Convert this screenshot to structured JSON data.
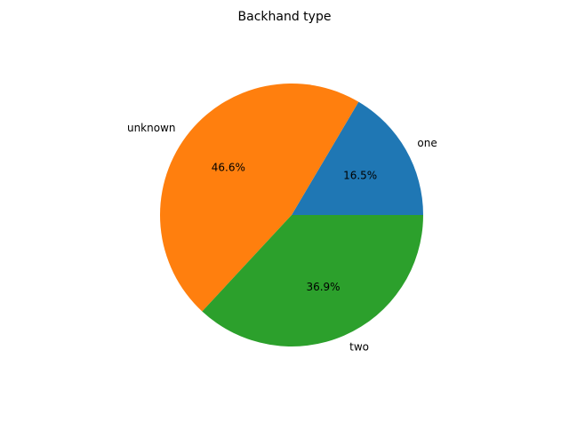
{
  "chart_data": {
    "type": "pie",
    "title": "Backhand type",
    "categories": [
      "one",
      "unknown",
      "two"
    ],
    "values": [
      16.5,
      46.6,
      36.9
    ],
    "percent_labels": [
      "16.5%",
      "46.6%",
      "36.9%"
    ],
    "colors": [
      "#1f77b4",
      "#ff7f0e",
      "#2ca02c"
    ],
    "start_angle_deg": 0,
    "direction": "counterclockwise",
    "legend": "none"
  }
}
